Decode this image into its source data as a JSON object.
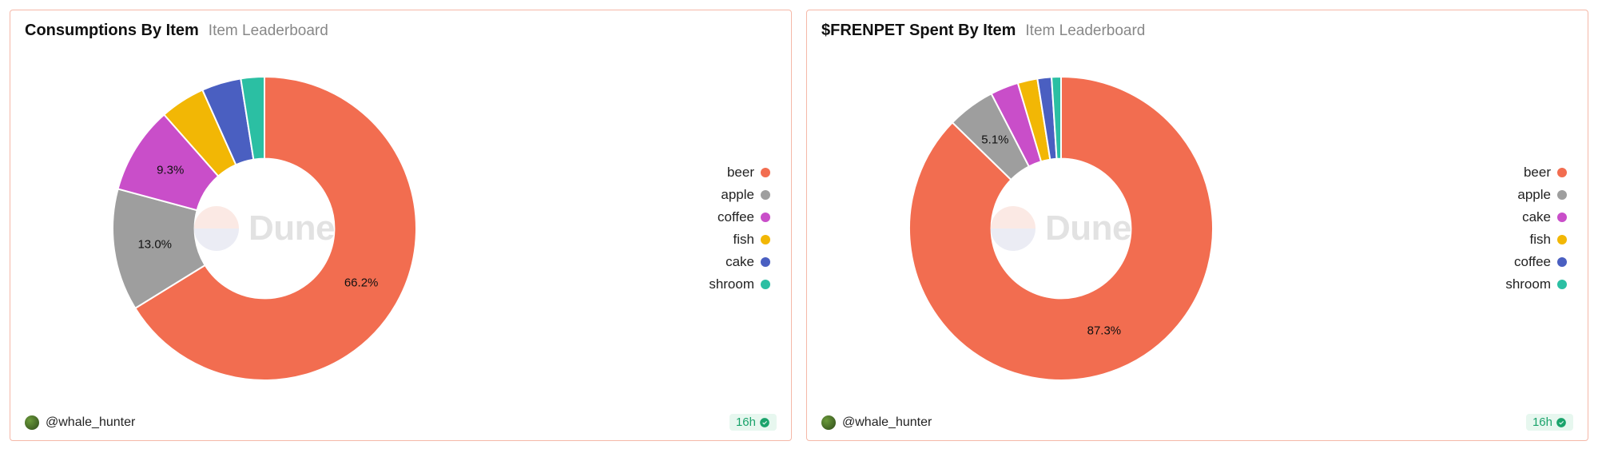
{
  "cards": [
    {
      "title": "Consumptions By Item",
      "subtitle": "Item Leaderboard",
      "author": "@whale_hunter",
      "age": "16h",
      "chart": {
        "type": "donut",
        "inner_radius_ratio": 0.46,
        "start_angle_deg": -90,
        "background_color": "#ffffff",
        "label_fontsize": 15,
        "label_show_threshold_pct": 5.0,
        "slices": [
          {
            "name": "beer",
            "value": 66.2,
            "color": "#f26d50",
            "show_label": true,
            "label": "66.2%"
          },
          {
            "name": "apple",
            "value": 13.0,
            "color": "#9e9e9e",
            "show_label": true,
            "label": "13.0%"
          },
          {
            "name": "coffee",
            "value": 9.3,
            "color": "#c94ec9",
            "show_label": true,
            "label": "9.3%"
          },
          {
            "name": "fish",
            "value": 4.8,
            "color": "#f2b705",
            "show_label": false
          },
          {
            "name": "cake",
            "value": 4.2,
            "color": "#4a5fc1",
            "show_label": false
          },
          {
            "name": "shroom",
            "value": 2.5,
            "color": "#2bbfa3",
            "show_label": false
          }
        ],
        "legend_order": [
          "beer",
          "apple",
          "coffee",
          "fish",
          "cake",
          "shroom"
        ]
      }
    },
    {
      "title": "$FRENPET Spent By Item",
      "subtitle": "Item Leaderboard",
      "author": "@whale_hunter",
      "age": "16h",
      "chart": {
        "type": "donut",
        "inner_radius_ratio": 0.46,
        "start_angle_deg": -90,
        "background_color": "#ffffff",
        "label_fontsize": 15,
        "label_show_threshold_pct": 5.0,
        "slices": [
          {
            "name": "beer",
            "value": 87.3,
            "color": "#f26d50",
            "show_label": true,
            "label": "87.3%"
          },
          {
            "name": "apple",
            "value": 5.1,
            "color": "#9e9e9e",
            "show_label": true,
            "label": "5.1%"
          },
          {
            "name": "cake",
            "value": 3.0,
            "color": "#c94ec9",
            "show_label": false
          },
          {
            "name": "fish",
            "value": 2.1,
            "color": "#f2b705",
            "show_label": false
          },
          {
            "name": "coffee",
            "value": 1.5,
            "color": "#4a5fc1",
            "show_label": false
          },
          {
            "name": "shroom",
            "value": 1.0,
            "color": "#2bbfa3",
            "show_label": false
          }
        ],
        "legend_order": [
          "beer",
          "apple",
          "cake",
          "fish",
          "coffee",
          "shroom"
        ]
      }
    }
  ],
  "watermark": {
    "text": "Dune",
    "logo_top_color": "#f4b4a1",
    "logo_bottom_color": "#b8bddb",
    "opacity": 0.28,
    "fontsize": 44
  },
  "card_border_color": "#f5b8a8",
  "age_badge": {
    "bg": "#e7f7ef",
    "fg": "#1aa36b"
  }
}
